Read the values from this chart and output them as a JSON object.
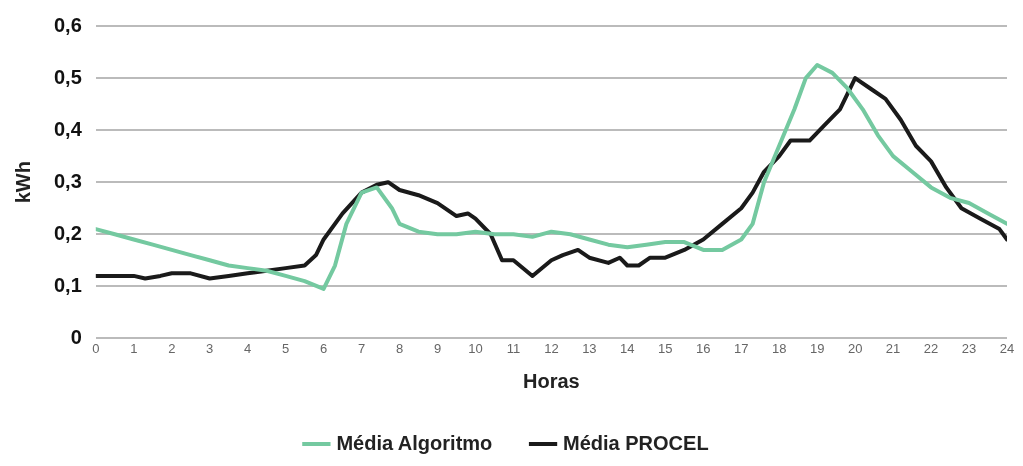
{
  "chart_data": {
    "type": "line",
    "xlabel": "Horas",
    "ylabel": "kWh",
    "xlim": [
      0,
      24
    ],
    "xticks": [
      0,
      1,
      2,
      3,
      4,
      5,
      6,
      7,
      8,
      9,
      10,
      11,
      12,
      13,
      14,
      15,
      16,
      17,
      18,
      19,
      20,
      21,
      22,
      23,
      24
    ],
    "ylim": [
      0,
      0.6
    ],
    "yticks": [
      {
        "value": 0,
        "label": "0"
      },
      {
        "value": 0.1,
        "label": "0,1"
      },
      {
        "value": 0.2,
        "label": "0,2"
      },
      {
        "value": 0.3,
        "label": "0,3"
      },
      {
        "value": 0.4,
        "label": "0,4"
      },
      {
        "value": 0.5,
        "label": "0,5"
      },
      {
        "value": 0.6,
        "label": "0,6"
      }
    ],
    "grid": "y",
    "legend": "bottom",
    "marker": "none",
    "line_style": "solid",
    "series": [
      {
        "name": "Média Algoritmo",
        "color": "#74c9a0",
        "x": [
          0,
          0.5,
          1,
          1.5,
          2,
          2.5,
          3,
          3.5,
          4,
          4.5,
          5,
          5.5,
          6,
          6.3,
          6.6,
          7,
          7.4,
          7.8,
          8,
          8.5,
          9,
          9.5,
          10,
          10.5,
          11,
          11.5,
          12,
          12.5,
          13,
          13.5,
          14,
          14.5,
          15,
          15.5,
          16,
          16.5,
          17,
          17.3,
          17.6,
          18,
          18.4,
          18.7,
          19,
          19.4,
          19.8,
          20.2,
          20.6,
          21,
          21.5,
          22,
          22.5,
          23,
          23.5,
          24
        ],
        "values": [
          0.21,
          0.2,
          0.19,
          0.18,
          0.17,
          0.16,
          0.15,
          0.14,
          0.135,
          0.13,
          0.12,
          0.11,
          0.095,
          0.14,
          0.22,
          0.28,
          0.29,
          0.25,
          0.22,
          0.205,
          0.2,
          0.2,
          0.205,
          0.2,
          0.2,
          0.195,
          0.205,
          0.2,
          0.19,
          0.18,
          0.175,
          0.18,
          0.185,
          0.185,
          0.17,
          0.17,
          0.19,
          0.22,
          0.3,
          0.37,
          0.44,
          0.5,
          0.525,
          0.51,
          0.48,
          0.44,
          0.39,
          0.35,
          0.32,
          0.29,
          0.27,
          0.26,
          0.24,
          0.22
        ]
      },
      {
        "name": "Média PROCEL",
        "color": "#1a1a1a",
        "x": [
          0,
          0.5,
          1,
          1.3,
          1.7,
          2,
          2.5,
          3,
          3.5,
          4,
          4.5,
          5,
          5.5,
          5.8,
          6,
          6.5,
          7,
          7.4,
          7.7,
          8,
          8.5,
          9,
          9.5,
          9.8,
          10,
          10.4,
          10.7,
          11,
          11.5,
          12,
          12.3,
          12.7,
          13,
          13.5,
          13.8,
          14,
          14.3,
          14.6,
          15,
          15.5,
          16,
          16.5,
          17,
          17.3,
          17.6,
          18,
          18.3,
          18.8,
          19.2,
          19.6,
          20,
          20.4,
          20.8,
          21.2,
          21.6,
          22,
          22.4,
          22.8,
          23.3,
          23.8,
          24
        ],
        "values": [
          0.12,
          0.12,
          0.12,
          0.115,
          0.12,
          0.125,
          0.125,
          0.115,
          0.12,
          0.125,
          0.13,
          0.135,
          0.14,
          0.16,
          0.19,
          0.24,
          0.28,
          0.295,
          0.3,
          0.285,
          0.275,
          0.26,
          0.235,
          0.24,
          0.23,
          0.2,
          0.15,
          0.15,
          0.12,
          0.15,
          0.16,
          0.17,
          0.155,
          0.145,
          0.155,
          0.14,
          0.14,
          0.155,
          0.155,
          0.17,
          0.19,
          0.22,
          0.25,
          0.28,
          0.32,
          0.35,
          0.38,
          0.38,
          0.41,
          0.44,
          0.5,
          0.48,
          0.46,
          0.42,
          0.37,
          0.34,
          0.29,
          0.25,
          0.23,
          0.21,
          0.19
        ]
      }
    ]
  }
}
